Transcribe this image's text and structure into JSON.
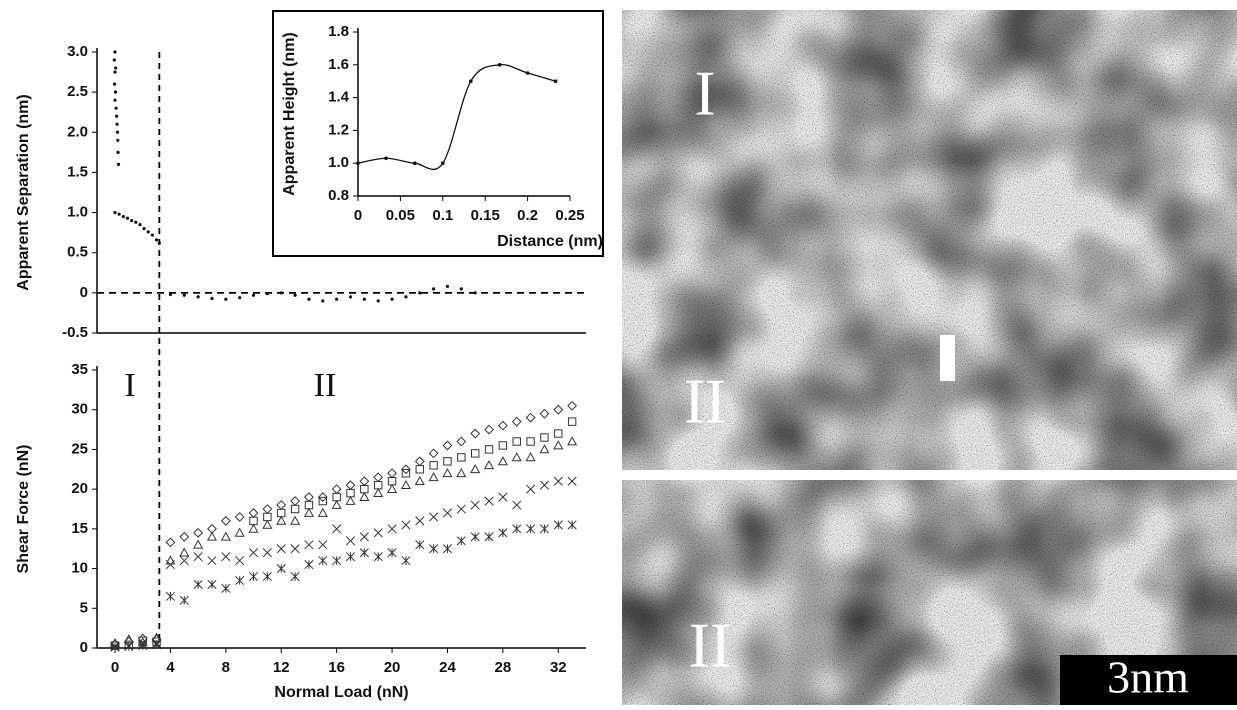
{
  "chart_data": [
    {
      "type": "scatter",
      "ylabel": "Apparent Separation (nm)",
      "xlim": [
        -1.3,
        34
      ],
      "ylim": [
        -0.5,
        3.0
      ],
      "yticks": [
        -0.5,
        0,
        0.5,
        {
          "value": 1,
          "label": "1.0"
        },
        1.5,
        {
          "value": 2,
          "label": "2.0"
        },
        2.5,
        {
          "value": 3,
          "label": "3.0"
        }
      ],
      "hline": 0,
      "vline": 3.2,
      "series": [
        {
          "color": "#111111",
          "marker": "dot",
          "x": [
            0,
            -0.05,
            0.05,
            0,
            -0.03,
            0.04,
            0,
            0.08,
            0.12,
            0.15,
            0.18,
            0.2,
            0.22,
            0.25,
            0,
            0.3,
            0.6,
            0.9,
            1.2,
            1.5,
            1.8,
            2.1,
            2.4,
            2.7,
            3.0,
            3.2,
            4,
            5,
            6,
            7,
            8,
            9,
            10,
            11,
            12,
            13,
            14,
            15,
            16,
            17,
            18,
            19,
            20,
            21,
            22,
            23,
            24,
            25,
            26
          ],
          "values": [
            3.0,
            2.9,
            2.8,
            2.75,
            2.6,
            2.5,
            2.4,
            2.3,
            2.2,
            2.1,
            2.0,
            1.9,
            1.75,
            1.6,
            1.0,
            0.98,
            0.95,
            0.93,
            0.9,
            0.88,
            0.85,
            0.8,
            0.76,
            0.72,
            0.66,
            0.62,
            -0.02,
            -0.03,
            -0.05,
            -0.07,
            -0.08,
            -0.06,
            -0.03,
            -0.01,
            0,
            -0.03,
            -0.08,
            -0.1,
            -0.08,
            -0.05,
            -0.08,
            -0.1,
            -0.08,
            -0.05,
            0,
            0.05,
            0.08,
            0.05,
            0
          ]
        }
      ]
    },
    {
      "type": "scatter",
      "xlabel": "Normal  Load  (nN)",
      "ylabel": "Shear Force (nN)",
      "xlim": [
        -1.3,
        34
      ],
      "ylim": [
        0,
        35
      ],
      "xticks": [
        0,
        4,
        8,
        12,
        16,
        20,
        24,
        28,
        32
      ],
      "yticks": [
        0,
        5,
        10,
        15,
        20,
        25,
        30,
        35
      ],
      "vline": 3.2,
      "regions": [
        "I",
        "II"
      ],
      "series": [
        {
          "color": "#333333",
          "marker": "diamond",
          "x": [
            0,
            1,
            2,
            3,
            4,
            5,
            6,
            7,
            8,
            9,
            10,
            11,
            12,
            13,
            14,
            15,
            16,
            17,
            18,
            19,
            20,
            21,
            22,
            23,
            24,
            25,
            26,
            27,
            28,
            29,
            30,
            31,
            32,
            33
          ],
          "values": [
            0.5,
            0.8,
            1.2,
            1.1,
            13.3,
            14,
            14.5,
            15,
            16,
            16.5,
            17,
            17.5,
            18,
            18.5,
            19,
            19,
            20,
            20.5,
            21,
            21.5,
            22,
            22.5,
            23.5,
            24.5,
            25.5,
            26,
            27,
            27.5,
            28,
            28.5,
            29,
            29.5,
            30,
            30.5
          ]
        },
        {
          "color": "#333333",
          "marker": "square",
          "x": [
            0,
            1,
            2,
            3,
            10,
            11,
            12,
            13,
            14,
            15,
            16,
            17,
            18,
            19,
            20,
            21,
            22,
            23,
            24,
            25,
            26,
            27,
            28,
            29,
            30,
            31,
            32,
            33
          ],
          "values": [
            0.3,
            0.4,
            0.9,
            0.8,
            16,
            16.5,
            17,
            17.5,
            18,
            18.5,
            19,
            19.5,
            20,
            20.5,
            21,
            22,
            22.5,
            23,
            23.5,
            24,
            24.5,
            25,
            25.5,
            26,
            26,
            26.5,
            27,
            28.5
          ]
        },
        {
          "color": "#333333",
          "marker": "triangle",
          "x": [
            0,
            1,
            2,
            3,
            4,
            5,
            6,
            7,
            8,
            9,
            10,
            11,
            12,
            13,
            14,
            15,
            16,
            17,
            18,
            19,
            20,
            21,
            22,
            23,
            24,
            25,
            26,
            27,
            28,
            29,
            30,
            31,
            32,
            33
          ],
          "values": [
            0.6,
            1.1,
            0.7,
            1.3,
            11,
            12,
            13,
            14,
            14,
            14.5,
            15,
            15.5,
            16,
            16,
            17,
            17,
            18,
            18.5,
            19,
            19.5,
            20,
            20.5,
            21,
            21.5,
            22,
            22,
            22.5,
            23,
            23.5,
            24,
            24,
            25,
            25.5,
            26
          ]
        },
        {
          "color": "#333333",
          "marker": "cross",
          "x": [
            0,
            1,
            2,
            3,
            4,
            5,
            6,
            7,
            8,
            9,
            10,
            11,
            12,
            13,
            14,
            15,
            16,
            17,
            18,
            19,
            20,
            21,
            22,
            23,
            24,
            25,
            26,
            27,
            28,
            29,
            30,
            31,
            32,
            33
          ],
          "values": [
            0.2,
            0.3,
            0.5,
            0.6,
            10.5,
            11,
            11.5,
            11,
            11.5,
            11,
            12,
            12,
            12.5,
            12.5,
            13,
            13,
            15,
            13.5,
            14,
            14.5,
            15,
            15.5,
            16,
            16.5,
            17,
            17.5,
            18,
            18.5,
            19,
            18,
            20,
            20.5,
            21,
            21
          ]
        },
        {
          "color": "#333333",
          "marker": "asterisk",
          "x": [
            0,
            1,
            2,
            3,
            4,
            5,
            6,
            7,
            8,
            9,
            10,
            11,
            12,
            13,
            14,
            15,
            16,
            17,
            18,
            19,
            20,
            21,
            22,
            23,
            24,
            25,
            26,
            27,
            28,
            29,
            30,
            31,
            32,
            33
          ],
          "values": [
            0.1,
            0.2,
            0.3,
            0.4,
            6.5,
            6,
            8,
            8,
            7.5,
            8.5,
            9,
            9,
            10,
            9,
            10.5,
            11,
            11,
            11.5,
            12,
            11.5,
            12,
            11,
            13,
            12.5,
            12.5,
            13.5,
            14,
            14,
            14.5,
            15,
            15,
            15,
            15.5,
            15.5
          ]
        }
      ]
    },
    {
      "type": "line",
      "xlabel": "Distance (nm)",
      "ylabel": "Apparent Height (nm)",
      "xlim": [
        0,
        0.25
      ],
      "ylim": [
        0.8,
        1.8
      ],
      "xticks": [
        0,
        0.05,
        0.1,
        0.15,
        0.2,
        0.25
      ],
      "yticks": [
        0.8,
        {
          "value": 1,
          "label": "1.0"
        },
        1.2,
        1.4,
        1.6,
        1.8
      ],
      "series": [
        {
          "color": "#111111",
          "x": [
            0,
            0.033,
            0.067,
            0.1,
            0.133,
            0.167,
            0.2,
            0.233
          ],
          "values": [
            1.0,
            1.03,
            1.0,
            1.0,
            1.5,
            1.6,
            1.55,
            1.5
          ]
        }
      ]
    }
  ],
  "micrographs": {
    "top_labels": [
      "I",
      "II"
    ],
    "bottom_label": "II",
    "scale_bar": "3nm"
  }
}
